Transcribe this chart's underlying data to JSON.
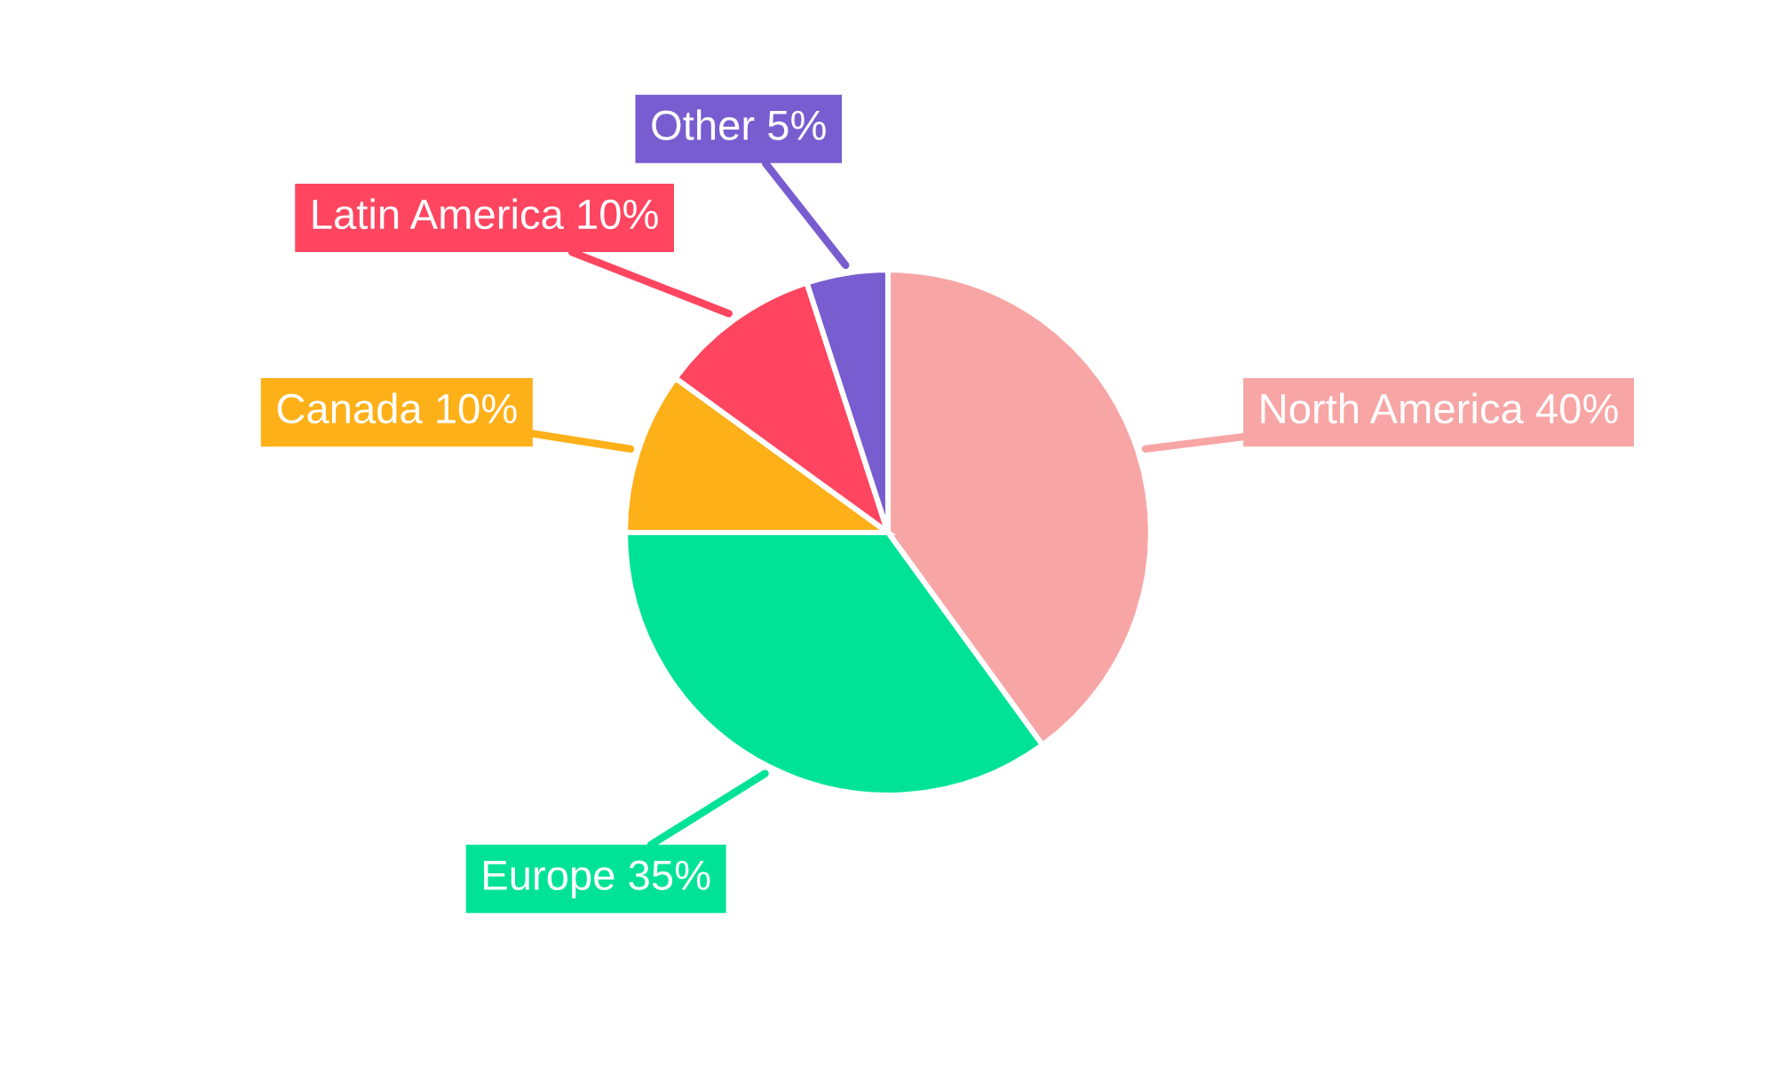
{
  "chart_data": {
    "type": "pie",
    "categories": [
      "North America",
      "Europe",
      "Canada",
      "Latin America",
      "Other"
    ],
    "values": [
      40,
      35,
      10,
      10,
      5
    ],
    "value_labels": [
      "40%",
      "35%",
      "10%",
      "10%",
      "5%"
    ],
    "colors": [
      "#f8a5a5",
      "#00e396",
      "#feb019",
      "#ff4560",
      "#775dd0"
    ]
  }
}
